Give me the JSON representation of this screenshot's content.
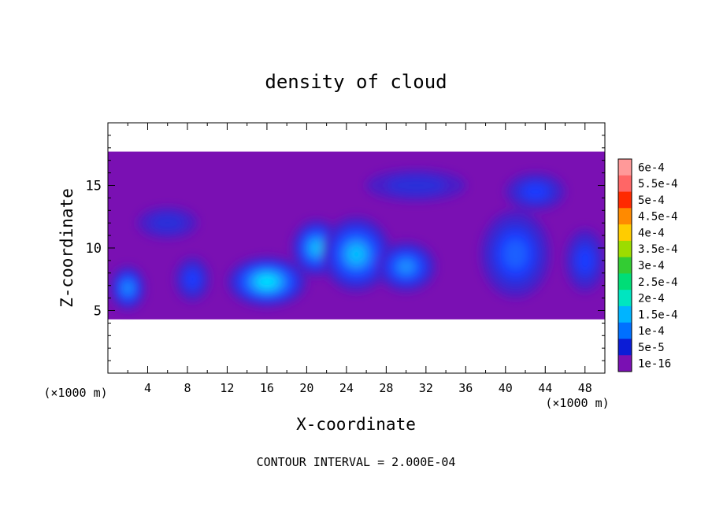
{
  "chart_data": {
    "type": "heatmap",
    "title": "density of cloud",
    "xlabel": "X-coordinate",
    "ylabel": "Z-coordinate",
    "x_unit_left": "(×1000 m)",
    "x_unit_right": "(×1000 m)",
    "footer": "CONTOUR INTERVAL = 2.000E-04",
    "xlim": [
      0,
      50
    ],
    "ylim": [
      0,
      20
    ],
    "x_ticks": [
      4,
      8,
      12,
      16,
      20,
      24,
      28,
      32,
      36,
      40,
      44,
      48
    ],
    "x_tick_labels": [
      "4",
      "8",
      "12",
      "16",
      "20",
      "24",
      "28",
      "32",
      "36",
      "40",
      "44",
      "48"
    ],
    "y_ticks": [
      5,
      10,
      15
    ],
    "y_tick_labels": [
      "5",
      "10",
      "15"
    ],
    "cloud_layer": {
      "bottom_km": 4.3,
      "top_km": 17.7
    },
    "cloud_cores": [
      {
        "x": 2,
        "z": 6.8,
        "w": 3.5,
        "h": 3.5,
        "level": 5
      },
      {
        "x": 8.5,
        "z": 7.5,
        "w": 3.5,
        "h": 3.5,
        "level": 3
      },
      {
        "x": 16,
        "z": 7.3,
        "w": 8,
        "h": 4,
        "level": 7
      },
      {
        "x": 21,
        "z": 10,
        "w": 5,
        "h": 4.5,
        "level": 6
      },
      {
        "x": 25,
        "z": 9.5,
        "w": 7,
        "h": 6,
        "level": 6
      },
      {
        "x": 30,
        "z": 8.5,
        "w": 6,
        "h": 4,
        "level": 5
      },
      {
        "x": 41,
        "z": 9.5,
        "w": 7,
        "h": 7,
        "level": 4
      },
      {
        "x": 43,
        "z": 14.5,
        "w": 6,
        "h": 3,
        "level": 3
      },
      {
        "x": 48,
        "z": 9.0,
        "w": 4,
        "h": 5,
        "level": 3
      },
      {
        "x": 31,
        "z": 15.0,
        "w": 10,
        "h": 2.5,
        "level": 2
      },
      {
        "x": 6,
        "z": 12.0,
        "w": 6,
        "h": 2.5,
        "level": 2
      }
    ],
    "colorbar": [
      {
        "label": "6e-4",
        "color": "#ff9999"
      },
      {
        "label": "5.5e-4",
        "color": "#ff6666"
      },
      {
        "label": "5e-4",
        "color": "#ff2a00"
      },
      {
        "label": "4.5e-4",
        "color": "#ff8a00"
      },
      {
        "label": "4e-4",
        "color": "#ffcc00"
      },
      {
        "label": "3.5e-4",
        "color": "#9cdc00"
      },
      {
        "label": "3e-4",
        "color": "#33cc33"
      },
      {
        "label": "2.5e-4",
        "color": "#00dd77"
      },
      {
        "label": "2e-4",
        "color": "#00e5c0"
      },
      {
        "label": "1.5e-4",
        "color": "#00b4ff"
      },
      {
        "label": "1e-4",
        "color": "#0070ff"
      },
      {
        "label": "5e-5",
        "color": "#0b1cd6"
      },
      {
        "label": "1e-16",
        "color": "#7a10b3"
      }
    ],
    "level_colors": [
      "#7a10b3",
      "#4a1cc7",
      "#2a2fd9",
      "#1c3aff",
      "#1e5eff",
      "#1e90ff",
      "#00c0ff",
      "#00e8ff"
    ],
    "grid": false,
    "legend_position": "right"
  }
}
